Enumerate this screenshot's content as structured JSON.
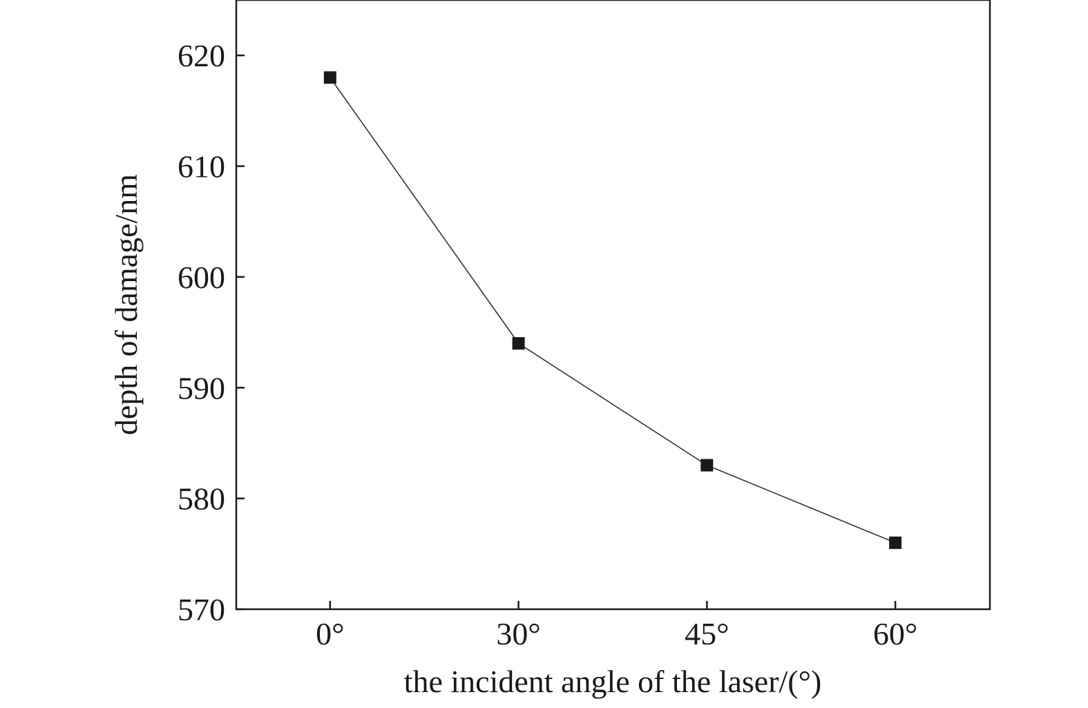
{
  "chart_data": {
    "type": "line",
    "title": "",
    "xlabel": "the incident angle of the laser/(°)",
    "ylabel": "depth of damage/nm",
    "categories": [
      "0°",
      "30°",
      "45°",
      "60°"
    ],
    "series": [
      {
        "values": [
          618,
          594,
          583,
          576
        ]
      }
    ],
    "ylim": [
      570,
      625
    ],
    "yticks": [
      570,
      580,
      590,
      600,
      610,
      620
    ],
    "marker": "square",
    "grid": false,
    "legend": "none",
    "colors": {
      "line": "#333333",
      "marker": "#1a1a1a",
      "axis": "#1a1a1a"
    }
  }
}
